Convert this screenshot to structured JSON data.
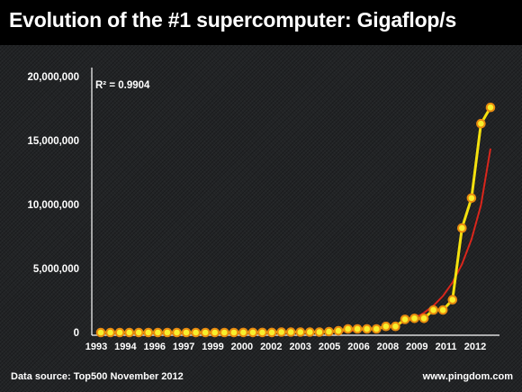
{
  "header": {
    "title": "Evolution of the #1 supercomputer: Gigaflop/s"
  },
  "footer": {
    "source": "Data source: Top500 November 2012",
    "site": "www.pingdom.com"
  },
  "chart_data": {
    "type": "line",
    "title": "Evolution of the #1 supercomputer: Gigaflop/s",
    "xlabel": "",
    "ylabel": "",
    "ylim": [
      0,
      20000000
    ],
    "y_ticks": [
      "0",
      "5,000,000",
      "10,000,000",
      "15,000,000",
      "20,000,000"
    ],
    "x_tick_labels": [
      "1993",
      "1994",
      "1996",
      "1997",
      "1999",
      "2000",
      "2002",
      "2003",
      "2005",
      "2006",
      "2008",
      "2009",
      "2011",
      "2012"
    ],
    "grid": false,
    "annotation": "R² = 0.9904",
    "colors": {
      "data_line": "#f4e10e",
      "marker_fill": "#f7ef2d",
      "marker_stroke": "#e88a10",
      "trend_line": "#d9261c",
      "axes": "#ffffff"
    },
    "series": [
      {
        "values": [
          60,
          124,
          143,
          143,
          170,
          170,
          368,
          1068,
          1338,
          1338,
          1453,
          2121,
          2379,
          2379,
          2379,
          4938,
          7226,
          7226,
          7226,
          35860,
          35860,
          35860,
          35860,
          35860,
          70720,
          136800,
          280600,
          280600,
          280600,
          280600,
          478200,
          478200,
          1026000,
          1105000,
          1105000,
          1759000,
          1759000,
          2566000,
          8162000,
          10510000,
          16324750,
          17590000
        ]
      },
      {
        "type": "trend",
        "model": "exponential",
        "values": [
          38.45,
          52.5,
          71.7,
          97.9,
          133.7,
          182.6,
          249.4,
          340.6,
          465.1,
          635.1,
          867.3,
          1184.4,
          1617.4,
          2208.8,
          3016.3,
          4119.2,
          5625.2,
          7681.8,
          10490,
          14330,
          19560,
          26710,
          36480,
          49810,
          68030,
          92900,
          126870,
          173250,
          236600,
          323090,
          441210,
          602520,
          822800,
          1123600,
          1534400,
          2095400,
          2861500,
          3907700,
          5336300,
          7287300,
          9951600,
          14382000
        ]
      }
    ]
  }
}
